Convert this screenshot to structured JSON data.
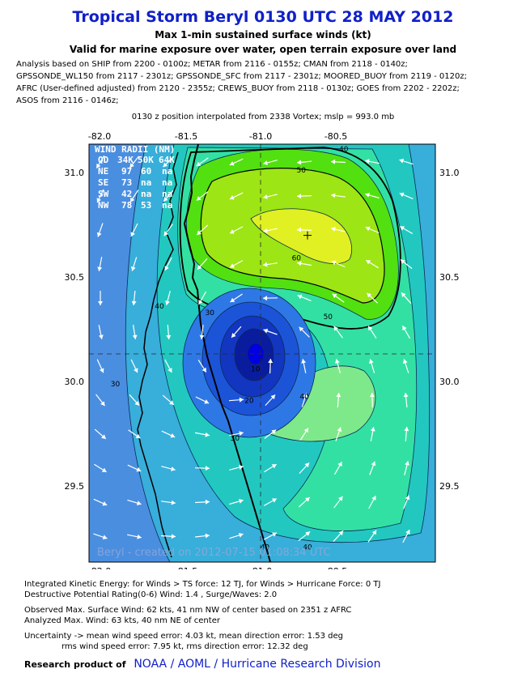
{
  "header": {
    "title": "Tropical Storm Beryl 0130 UTC 28 MAY 2012",
    "subtitle1": "Max 1-min sustained surface winds (kt)",
    "subtitle2": "Valid for marine exposure over water, open terrain exposure over land"
  },
  "analysis_lines": [
    "Analysis based on SHIP from 2200 - 0100z; METAR from 2116 - 0155z; CMAN from 2118 - 0140z;",
    "GPSSONDE_WL150 from 2117 - 2301z; GPSSONDE_SFC from 2117 - 2301z; MOORED_BUOY from 2119 - 0120z;",
    "AFRC (User-defined adjusted) from 2120 - 2355z; CREWS_BUOY from 2118 - 0130z; GOES from 2202 - 2202z;",
    "ASOS from 2116 - 0146z;"
  ],
  "position_note": "0130 z position interpolated from 2338 Vortex; mslp = 993.0 mb",
  "map": {
    "lon_ticks": [
      "-82.0",
      "-81.5",
      "-81.0",
      "-80.5"
    ],
    "lat_ticks": [
      "31.0",
      "30.5",
      "30.0",
      "29.5"
    ],
    "lon_range": [
      -82.0,
      -80.4
    ],
    "lat_range": [
      29.15,
      31.15
    ],
    "center": {
      "lon": -81.05,
      "lat": 30.12
    },
    "max_wind_marker": {
      "lon": -80.68,
      "lat": 30.7
    },
    "contour_labels": [
      {
        "text": "50",
        "lon": -80.72,
        "lat": 31.0
      },
      {
        "text": "60",
        "lon": -80.75,
        "lat": 30.58
      },
      {
        "text": "50",
        "lon": -80.55,
        "lat": 30.3
      },
      {
        "text": "40",
        "lon": -80.45,
        "lat": 31.1
      },
      {
        "text": "40",
        "lon": -81.62,
        "lat": 30.35
      },
      {
        "text": "30",
        "lon": -81.3,
        "lat": 30.32
      },
      {
        "text": "40",
        "lon": -80.7,
        "lat": 29.92
      },
      {
        "text": "20",
        "lon": -81.05,
        "lat": 29.9
      },
      {
        "text": "10",
        "lon": -81.01,
        "lat": 30.05
      },
      {
        "text": "30",
        "lon": -81.14,
        "lat": 29.72
      },
      {
        "text": "30",
        "lon": -81.9,
        "lat": 29.98
      },
      {
        "text": "40",
        "lon": -80.95,
        "lat": 29.2
      },
      {
        "text": "40",
        "lon": -80.68,
        "lat": 29.2
      }
    ],
    "watermark": "Beryl - created on 2012-07-15 01:08:34 UTC"
  },
  "wind_radii": {
    "title": "WIND RADII (NM)",
    "header": [
      "QD",
      "34K",
      "50K",
      "64K"
    ],
    "rows": [
      [
        "NE",
        "97",
        "60",
        "na"
      ],
      [
        "SE",
        "73",
        "na",
        "na"
      ],
      [
        "SW",
        "42",
        "na",
        "na"
      ],
      [
        "NW",
        "78",
        "53",
        "na"
      ]
    ]
  },
  "stats": {
    "ike": "Integrated Kinetic Energy: for Winds > TS force: 12 TJ, for Winds > Hurricane Force: 0 TJ",
    "dpr": "Destructive Potential Rating(0-6)  Wind: 1.4 , Surge/Waves: 2.0",
    "observed": "Observed Max. Surface Wind: 62 kts, 41 nm NW of center based on 2351 z AFRC",
    "analyzed": "Analyzed Max. Wind: 63 kts, 40 nm  NE of center",
    "uncertainty1": "Uncertainty -> mean wind speed error: 4.03 kt, mean direction error: 1.53 deg",
    "uncertainty2": "rms wind speed error: 7.95 kt, rms direction error: 12.32 deg"
  },
  "footer": {
    "label": "Research product of",
    "org": "NOAA  /  AOML  /  Hurricane Research Division"
  },
  "colors": {
    "title": "#1020c8",
    "band_35": "#4a8ee0",
    "band_40": "#38aeda",
    "band_45": "#22c8c0",
    "band_50": "#33e0a4",
    "band_55": "#7ee98a",
    "band_60": "#52e010",
    "band_65": "#9de514",
    "band_70": "#e0f022",
    "core1": "#2e78e6",
    "core2": "#1c54d8",
    "core3": "#1236c0",
    "core4": "#0a1c9e",
    "core5": "#0000e0"
  }
}
